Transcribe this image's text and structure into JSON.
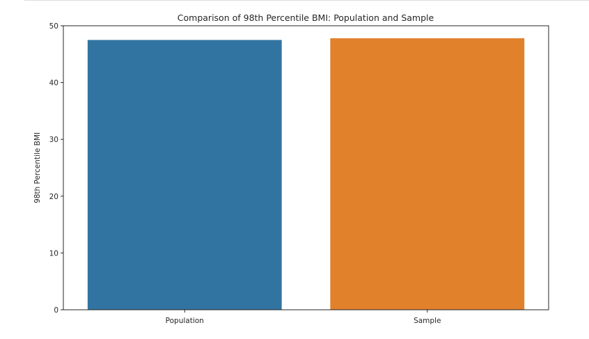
{
  "chart_data": {
    "type": "bar",
    "title": "Comparison of 98th Percentile BMI: Population and Sample",
    "xlabel": "",
    "ylabel": "98th Percentile BMI",
    "categories": [
      "Population",
      "Sample"
    ],
    "values": [
      47.5,
      47.8
    ],
    "colors": [
      "#3274a1",
      "#e1812c"
    ],
    "ylim": [
      0,
      50
    ],
    "yticks": [
      0,
      10,
      20,
      30,
      40,
      50
    ],
    "grid": false,
    "legend": "none"
  }
}
